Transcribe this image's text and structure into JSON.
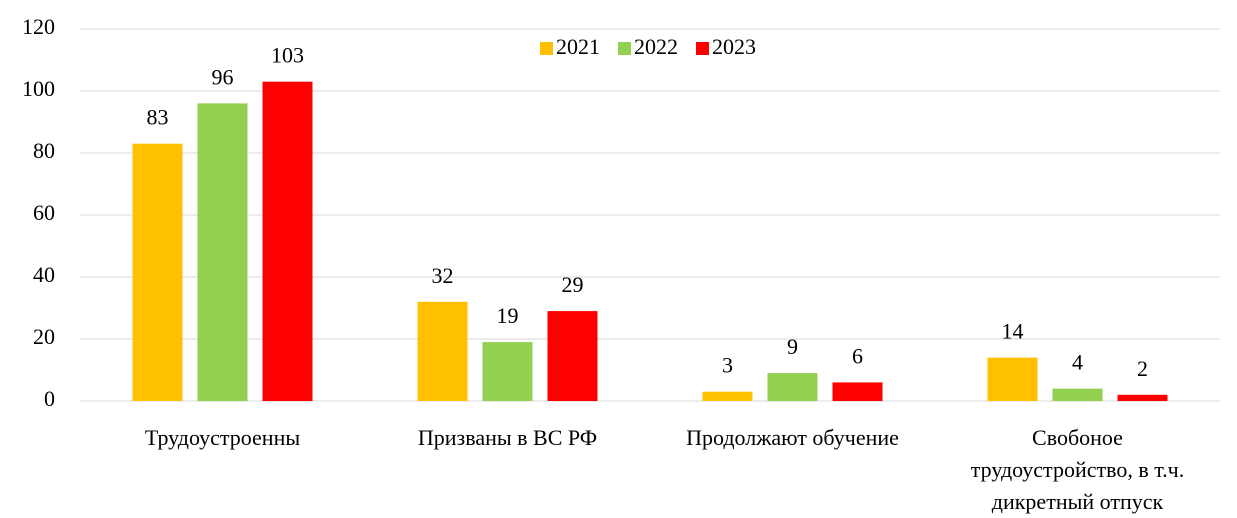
{
  "chart_data": {
    "type": "bar",
    "categories": [
      "Трудоустроенны",
      "Призваны в ВС РФ",
      "Продолжают обучение",
      "Свобоное\nтрудоустройство, в т.ч.\nдикретный отпуск"
    ],
    "series": [
      {
        "name": "2021",
        "color": "#FFC000",
        "values": [
          83,
          32,
          3,
          14
        ]
      },
      {
        "name": "2022",
        "color": "#92D050",
        "values": [
          96,
          19,
          9,
          4
        ]
      },
      {
        "name": "2023",
        "color": "#FF0000",
        "values": [
          103,
          29,
          6,
          2
        ]
      }
    ],
    "ylim": [
      0,
      120
    ],
    "yticks": [
      0,
      20,
      40,
      60,
      80,
      100,
      120
    ],
    "grid": true,
    "legend": "top"
  }
}
